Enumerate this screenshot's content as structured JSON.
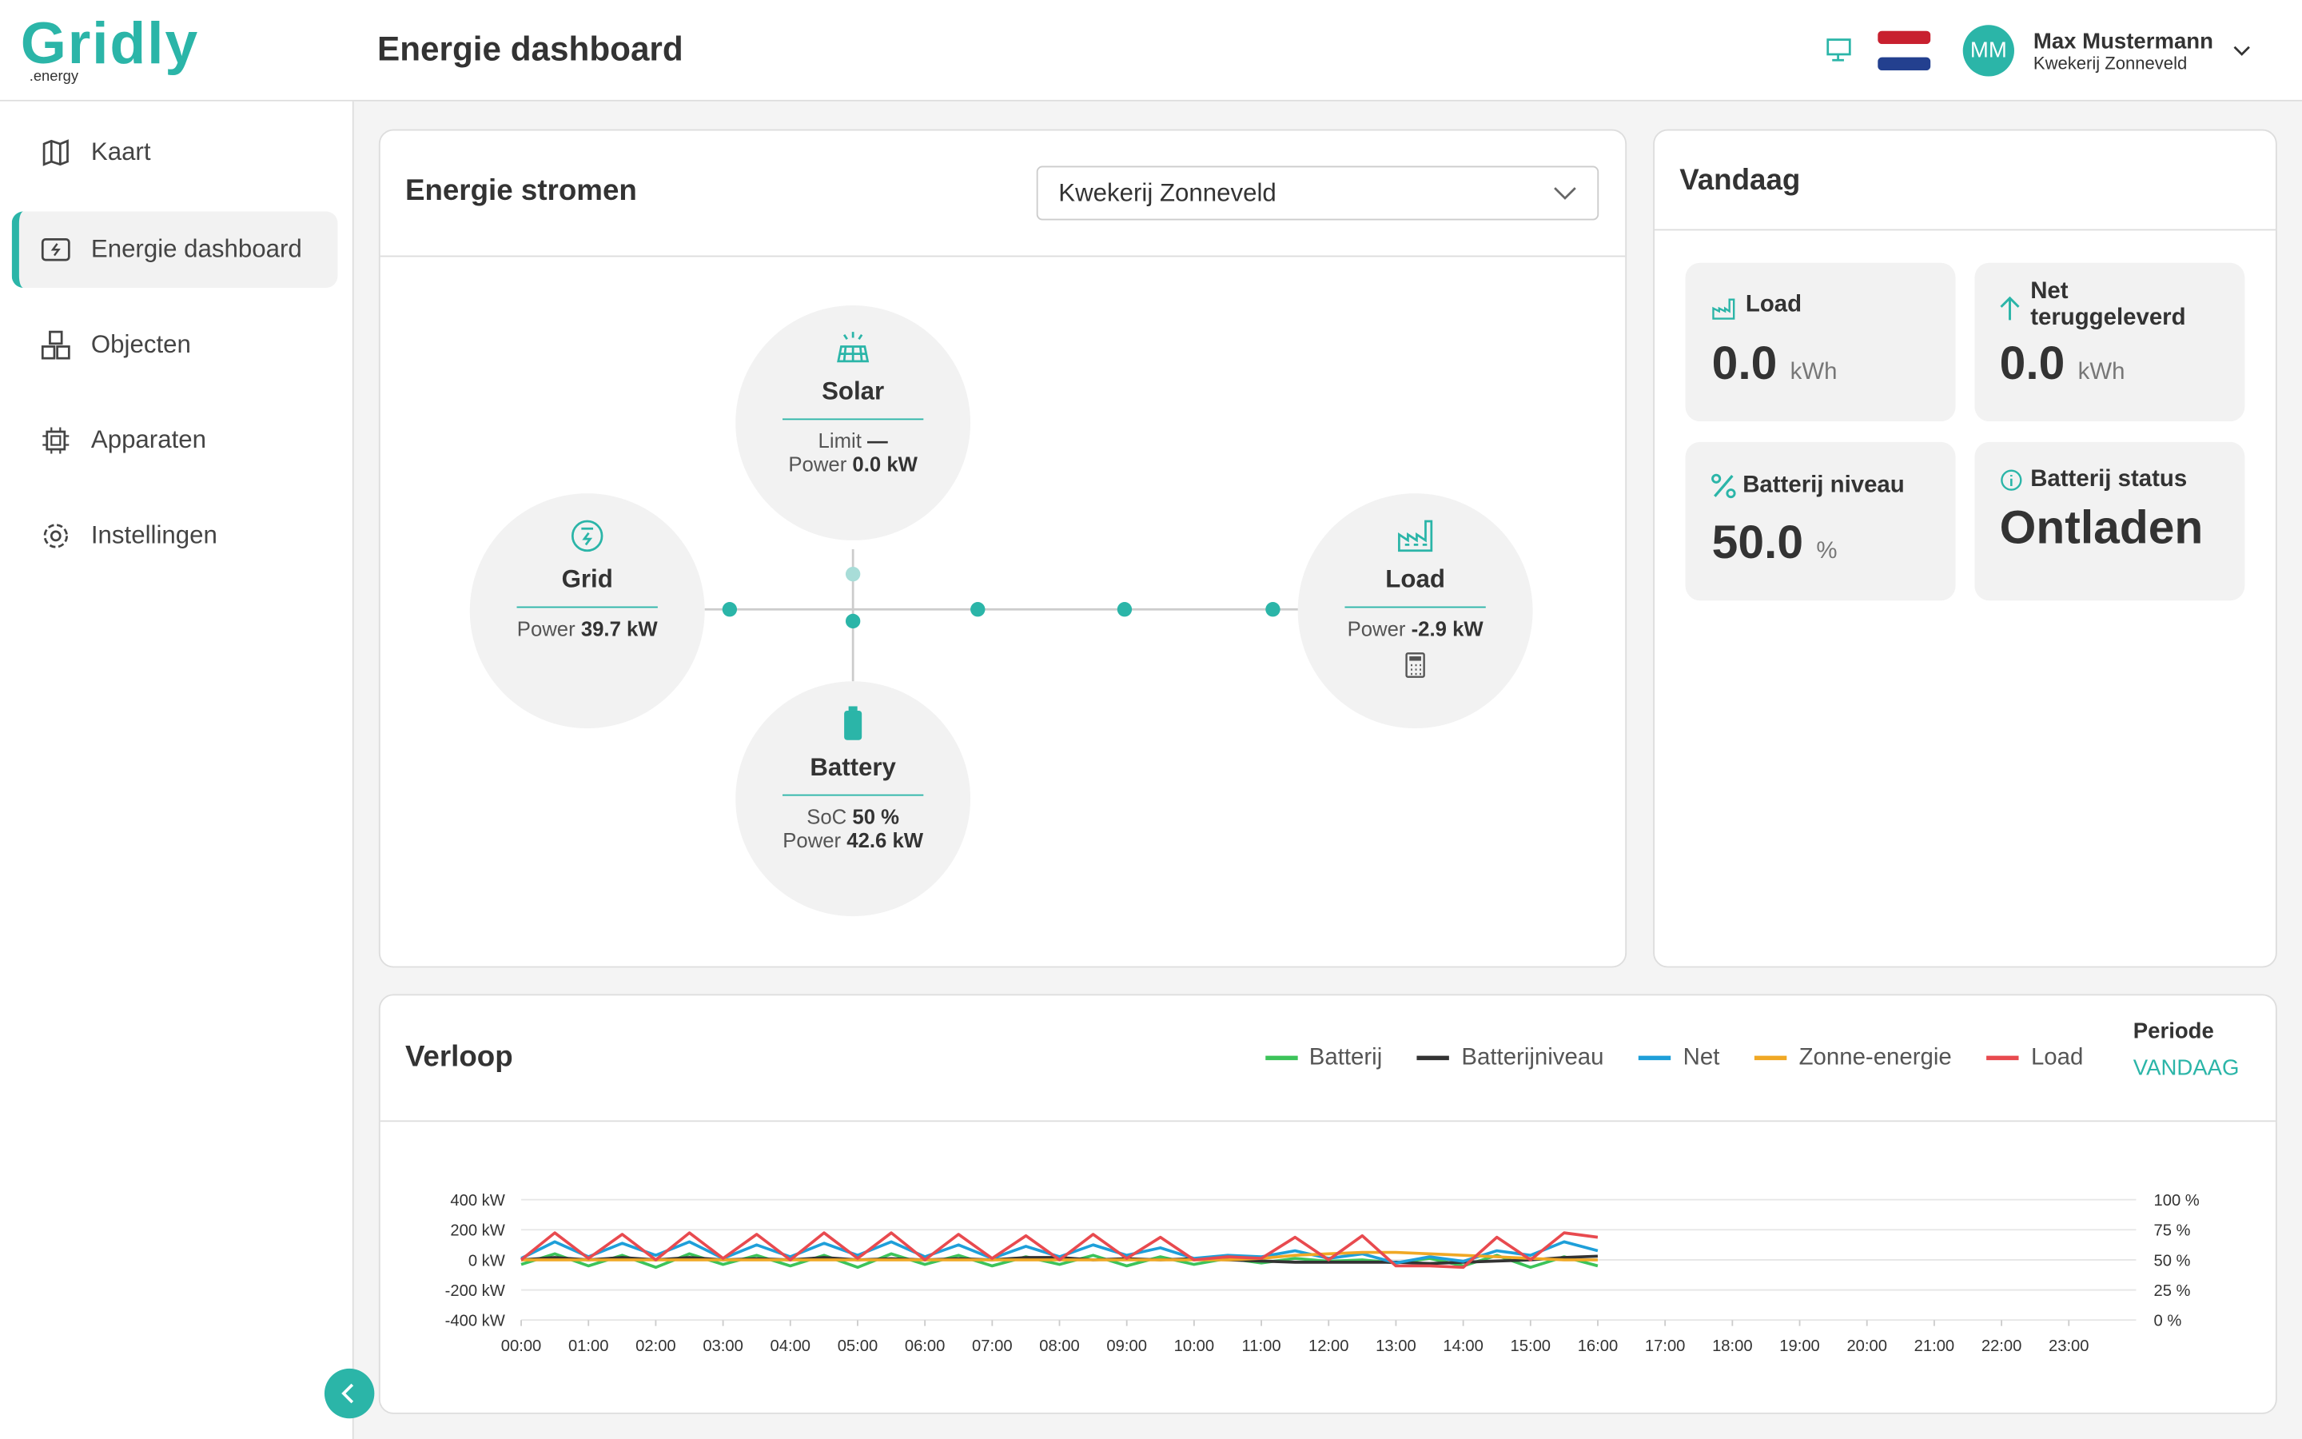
{
  "header": {
    "logo": "Gridly",
    "logo_sub": ".energy",
    "title": "Energie dashboard",
    "user_initials": "MM",
    "user_name": "Max Mustermann",
    "user_org": "Kwekerij Zonneveld"
  },
  "sidebar": {
    "items": [
      "Kaart",
      "Energie dashboard",
      "Objecten",
      "Apparaten",
      "Instellingen"
    ]
  },
  "flows": {
    "title": "Energie stromen",
    "site_select": "Kwekerij Zonneveld",
    "nodes": {
      "solar": {
        "label": "Solar",
        "lines": [
          {
            "label": "Limit",
            "value": "—"
          },
          {
            "label": "Power",
            "value": "0.0 kW"
          }
        ]
      },
      "grid": {
        "label": "Grid",
        "lines": [
          {
            "label": "Power",
            "value": "39.7 kW"
          }
        ]
      },
      "load": {
        "label": "Load",
        "lines": [
          {
            "label": "Power",
            "value": "-2.9 kW"
          }
        ]
      },
      "battery": {
        "label": "Battery",
        "lines": [
          {
            "label": "SoC",
            "value": "50 %"
          },
          {
            "label": "Power",
            "value": "42.6 kW"
          }
        ]
      }
    }
  },
  "today": {
    "title": "Vandaag",
    "cards": [
      {
        "label": "Load",
        "value": "0.0",
        "unit": "kWh"
      },
      {
        "label": "Net teruggeleverd",
        "value": "0.0",
        "unit": "kWh"
      },
      {
        "label": "Batterij niveau",
        "value": "50.0",
        "unit": "%"
      },
      {
        "label": "Batterij status",
        "value": "Ontladen"
      }
    ]
  },
  "period": {
    "label": "Periode",
    "value": "VANDAAG"
  },
  "chart_data": {
    "type": "line",
    "title": "Verloop",
    "x": [
      0,
      0.5,
      1,
      1.5,
      2,
      2.5,
      3,
      3.5,
      4,
      4.5,
      5,
      5.5,
      6,
      6.5,
      7,
      7.5,
      8,
      8.5,
      9,
      9.5,
      10,
      10.5,
      11,
      11.5,
      12,
      12.5,
      13,
      13.5,
      14,
      14.5,
      15,
      15.5,
      16
    ],
    "xlim": [
      0,
      24
    ],
    "xticks": [
      {
        "value": 0,
        "label": "00:00"
      },
      {
        "value": 1,
        "label": "01:00"
      },
      {
        "value": 2,
        "label": "02:00"
      },
      {
        "value": 3,
        "label": "03:00"
      },
      {
        "value": 4,
        "label": "04:00"
      },
      {
        "value": 5,
        "label": "05:00"
      },
      {
        "value": 6,
        "label": "06:00"
      },
      {
        "value": 7,
        "label": "07:00"
      },
      {
        "value": 8,
        "label": "08:00"
      },
      {
        "value": 9,
        "label": "09:00"
      },
      {
        "value": 10,
        "label": "10:00"
      },
      {
        "value": 11,
        "label": "11:00"
      },
      {
        "value": 12,
        "label": "12:00"
      },
      {
        "value": 13,
        "label": "13:00"
      },
      {
        "value": 14,
        "label": "14:00"
      },
      {
        "value": 15,
        "label": "15:00"
      },
      {
        "value": 16,
        "label": "16:00"
      },
      {
        "value": 17,
        "label": "17:00"
      },
      {
        "value": 18,
        "label": "18:00"
      },
      {
        "value": 19,
        "label": "19:00"
      },
      {
        "value": 20,
        "label": "20:00"
      },
      {
        "value": 21,
        "label": "21:00"
      },
      {
        "value": 22,
        "label": "22:00"
      },
      {
        "value": 23,
        "label": "23:00"
      }
    ],
    "ylim": [
      -400,
      400
    ],
    "yticks": [
      {
        "value": 400,
        "label": "400 kW"
      },
      {
        "value": 200,
        "label": "200 kW"
      },
      {
        "value": 0,
        "label": "0 kW"
      },
      {
        "value": -200,
        "label": "-200 kW"
      },
      {
        "value": -400,
        "label": "-400 kW"
      }
    ],
    "y2lim": [
      0,
      100
    ],
    "y2ticks": [
      {
        "value": 100,
        "label": "100 %"
      },
      {
        "value": 75,
        "label": "75 %"
      },
      {
        "value": 50,
        "label": "50 %"
      },
      {
        "value": 25,
        "label": "25 %"
      },
      {
        "value": 0,
        "label": "0 %"
      }
    ],
    "grid": true,
    "series": [
      {
        "name": "Batterij",
        "color": "#3cc35a",
        "values": [
          -30,
          40,
          -40,
          30,
          -50,
          40,
          -30,
          30,
          -40,
          30,
          -50,
          40,
          -30,
          30,
          -40,
          20,
          -30,
          30,
          -40,
          20,
          -30,
          10,
          -20,
          10,
          -10,
          0,
          -20,
          10,
          -40,
          30,
          -50,
          20,
          -40
        ]
      },
      {
        "name": "Batterijniveau",
        "color": "#333333",
        "axis": "y2",
        "values": [
          50,
          52,
          50,
          52,
          50,
          52,
          50,
          51,
          50,
          52,
          50,
          51,
          50,
          51,
          50,
          52,
          52,
          50,
          51,
          50,
          51,
          50,
          49,
          48,
          48,
          48,
          48,
          47,
          48,
          49,
          50,
          52,
          53
        ]
      },
      {
        "name": "Net",
        "color": "#1e9fd9",
        "values": [
          10,
          120,
          20,
          110,
          30,
          120,
          10,
          100,
          20,
          110,
          30,
          120,
          20,
          100,
          10,
          90,
          20,
          100,
          30,
          80,
          10,
          30,
          20,
          60,
          10,
          40,
          -20,
          20,
          -10,
          60,
          30,
          120,
          60
        ]
      },
      {
        "name": "Zonne-energie",
        "color": "#f0a825",
        "values": [
          0,
          0,
          0,
          0,
          0,
          0,
          0,
          0,
          0,
          0,
          0,
          0,
          0,
          0,
          0,
          0,
          0,
          0,
          0,
          0,
          0,
          0,
          10,
          30,
          40,
          50,
          50,
          40,
          30,
          20,
          10,
          0,
          0
        ]
      },
      {
        "name": "Load",
        "color": "#e84a4f",
        "values": [
          0,
          180,
          10,
          170,
          0,
          180,
          10,
          170,
          0,
          180,
          10,
          180,
          0,
          170,
          10,
          160,
          0,
          170,
          10,
          150,
          0,
          20,
          10,
          150,
          0,
          160,
          -40,
          -40,
          -50,
          150,
          0,
          180,
          150
        ]
      }
    ]
  }
}
